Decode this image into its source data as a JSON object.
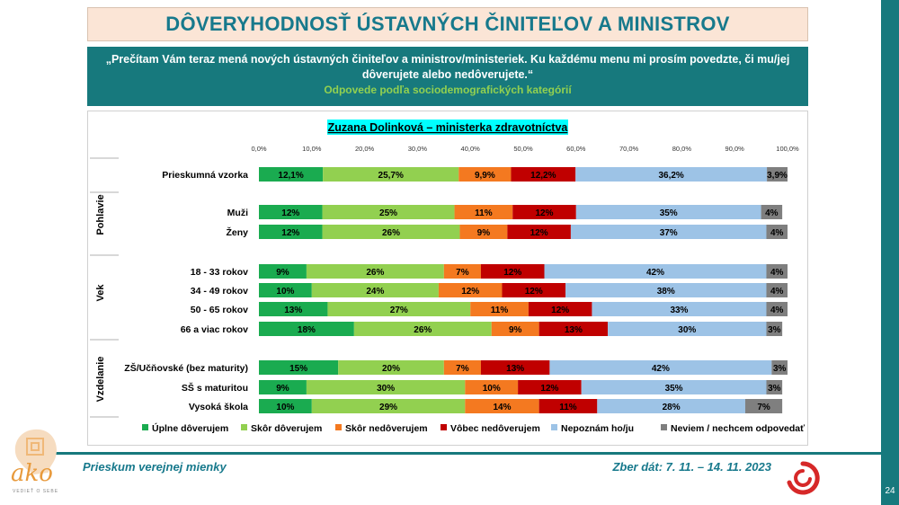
{
  "header": {
    "title": "DÔVERYHODNOSŤ ÚSTAVNÝCH ČINITEĽOV A MINISTROV",
    "question_line1": "„Prečítam Vám teraz mená nových ústavných činiteľov a ministrov/ministeriek. Ku každému menu mi prosím povedzte, či mu/jej",
    "question_line2": "dôverujete alebo nedôverujete.“",
    "subtitle": "Odpovede podľa sociodemografických kategórií"
  },
  "footer": {
    "left": "Prieskum verejnej mienky",
    "right": "Zber dát: 7. 11. – 14. 11. 2023",
    "page_number": "24",
    "logo_text": "ako",
    "logo_tagline": "VEDIEŤ O SEBE"
  },
  "colors": {
    "teal": "#17797d",
    "full_trust": "#1aab50",
    "rather_trust": "#92d050",
    "rather_distrust": "#f47920",
    "no_trust": "#c00000",
    "dont_know_person": "#9dc3e6",
    "no_answer": "#7f7f7f"
  },
  "chart_data": {
    "type": "stacked-bar-horizontal",
    "title": "Zuzana Dolinková – ministerka zdravotníctva",
    "xlim": [
      0,
      100
    ],
    "ticks": [
      "0,0%",
      "10,0%",
      "20,0%",
      "30,0%",
      "40,0%",
      "50,0%",
      "60,0%",
      "70,0%",
      "80,0%",
      "90,0%",
      "100,0%"
    ],
    "legend": [
      "Úplne dôverujem",
      "Skôr dôverujem",
      "Skôr nedôverujem",
      "Vôbec nedôverujem",
      "Nepoznám ho/ju",
      "Neviem / nechcem odpovedať"
    ],
    "groups": [
      {
        "name": "",
        "rows": [
          {
            "label": "Prieskumná vzorka",
            "values": [
              12.1,
              25.7,
              9.9,
              12.2,
              36.2,
              3.9
            ],
            "labels": [
              "12,1%",
              "25,7%",
              "9,9%",
              "12,2%",
              "36,2%",
              "3,9%"
            ]
          }
        ]
      },
      {
        "name": "Pohlavie",
        "rows": [
          {
            "label": "Muži",
            "values": [
              12,
              25,
              11,
              12,
              35,
              4
            ],
            "labels": [
              "12%",
              "25%",
              "11%",
              "12%",
              "35%",
              "4%"
            ]
          },
          {
            "label": "Ženy",
            "values": [
              12,
              26,
              9,
              12,
              37,
              4
            ],
            "labels": [
              "12%",
              "26%",
              "9%",
              "12%",
              "37%",
              "4%"
            ]
          }
        ]
      },
      {
        "name": "Vek",
        "rows": [
          {
            "label": "18 - 33 rokov",
            "values": [
              9,
              26,
              7,
              12,
              42,
              4
            ],
            "labels": [
              "9%",
              "26%",
              "7%",
              "12%",
              "42%",
              "4%"
            ]
          },
          {
            "label": "34 - 49 rokov",
            "values": [
              10,
              24,
              12,
              12,
              38,
              4
            ],
            "labels": [
              "10%",
              "24%",
              "12%",
              "12%",
              "38%",
              "4%"
            ]
          },
          {
            "label": "50 - 65 rokov",
            "values": [
              13,
              27,
              11,
              12,
              33,
              4
            ],
            "labels": [
              "13%",
              "27%",
              "11%",
              "12%",
              "33%",
              "4%"
            ]
          },
          {
            "label": "66 a viac rokov",
            "values": [
              18,
              26,
              9,
              13,
              30,
              3
            ],
            "labels": [
              "18%",
              "26%",
              "9%",
              "13%",
              "30%",
              "3%"
            ]
          }
        ]
      },
      {
        "name": "Vzdelanie",
        "rows": [
          {
            "label": "ZŠ/Učňovské (bez maturity)",
            "values": [
              15,
              20,
              7,
              13,
              42,
              3
            ],
            "labels": [
              "15%",
              "20%",
              "7%",
              "13%",
              "42%",
              "3%"
            ]
          },
          {
            "label": "SŠ s maturitou",
            "values": [
              9,
              30,
              10,
              12,
              35,
              3
            ],
            "labels": [
              "9%",
              "30%",
              "10%",
              "12%",
              "35%",
              "3%"
            ]
          },
          {
            "label": "Vysoká škola",
            "values": [
              10,
              29,
              14,
              11,
              28,
              7
            ],
            "labels": [
              "10%",
              "29%",
              "14%",
              "11%",
              "28%",
              "7%"
            ]
          }
        ]
      }
    ]
  }
}
